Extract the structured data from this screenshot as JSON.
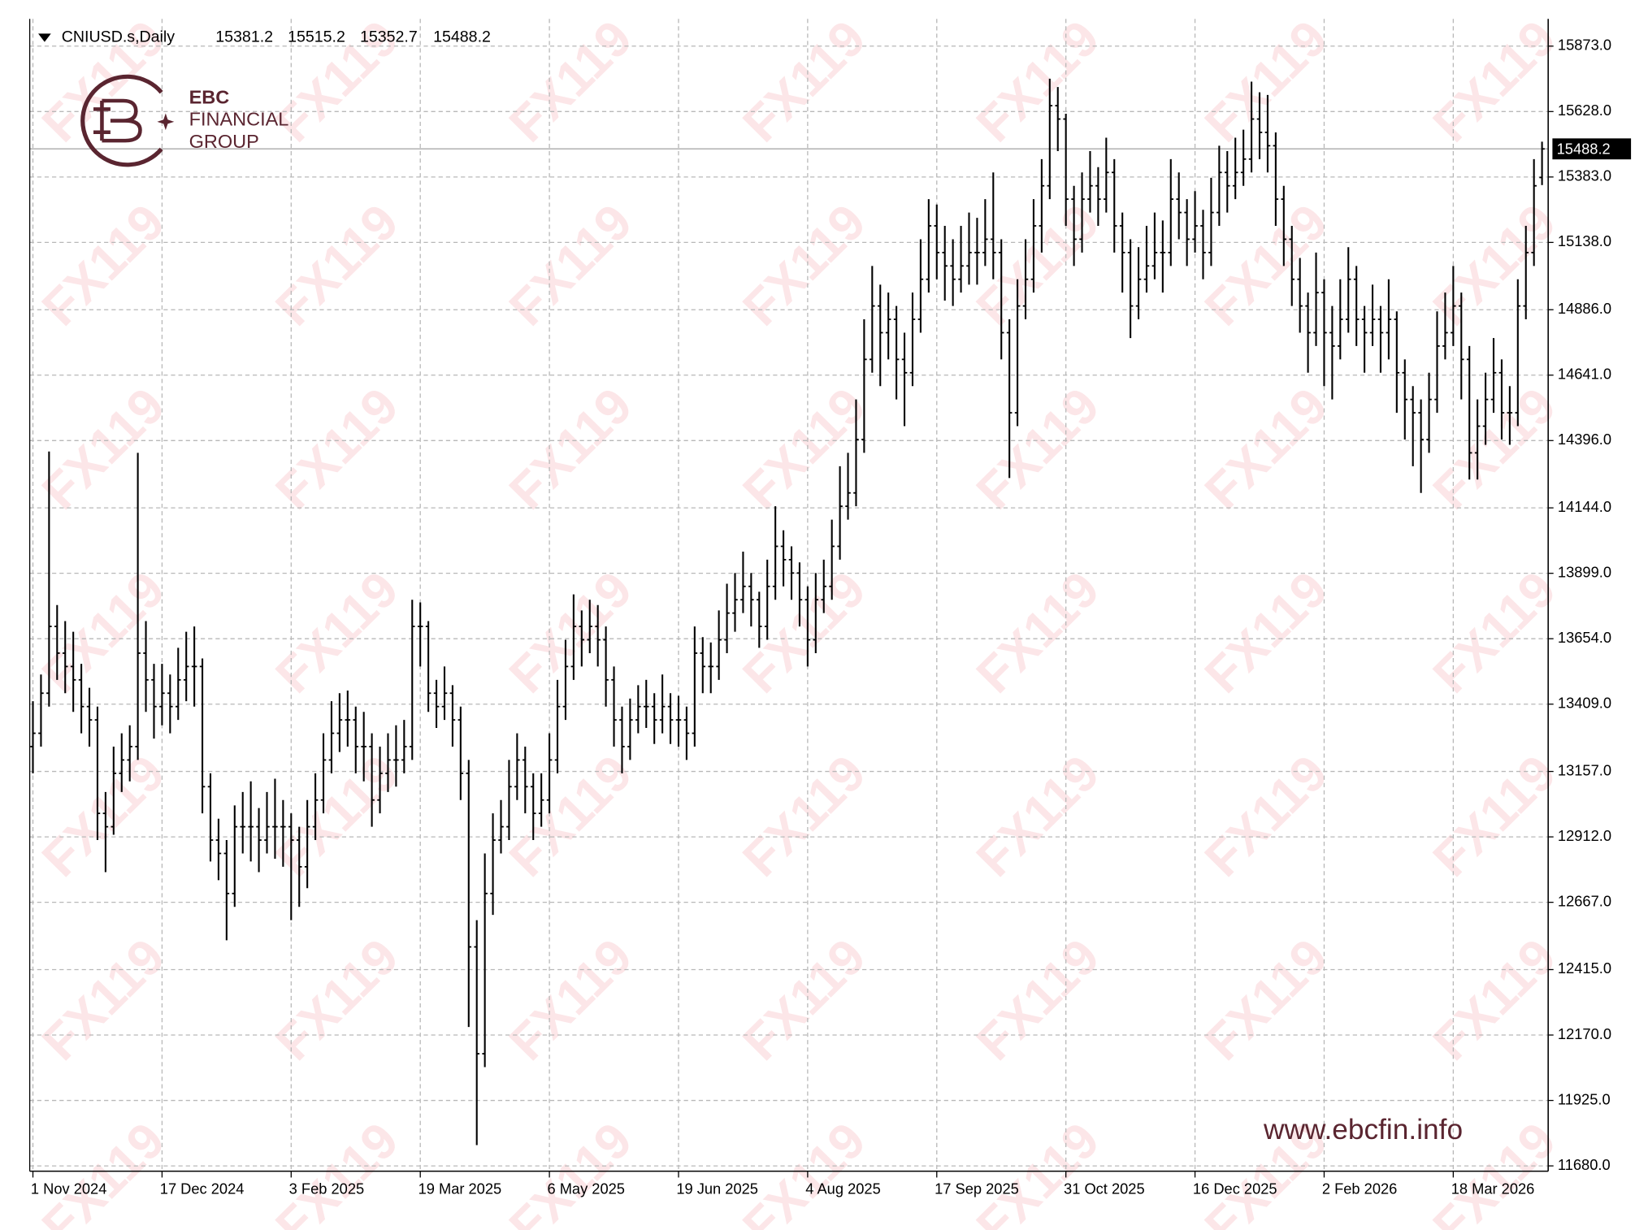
{
  "chart_data": {
    "type": "ohlc",
    "title": "CNIUSD.s,Daily",
    "color": "#000000",
    "grid": true,
    "ylim": [
      11660,
      15975
    ],
    "yticks": [
      {
        "value": 11680,
        "label": "11680.0"
      },
      {
        "value": 11925,
        "label": "11925.0"
      },
      {
        "value": 12170,
        "label": "12170.0"
      },
      {
        "value": 12415,
        "label": "12415.0"
      },
      {
        "value": 12667,
        "label": "12667.0"
      },
      {
        "value": 12912,
        "label": "12912.0"
      },
      {
        "value": 13157,
        "label": "13157.0"
      },
      {
        "value": 13409,
        "label": "13409.0"
      },
      {
        "value": 13654,
        "label": "13654.0"
      },
      {
        "value": 13899,
        "label": "13899.0"
      },
      {
        "value": 14144,
        "label": "14144.0"
      },
      {
        "value": 14396,
        "label": "14396.0"
      },
      {
        "value": 14641,
        "label": "14641.0"
      },
      {
        "value": 14886,
        "label": "14886.0"
      },
      {
        "value": 15138,
        "label": "15138.0"
      },
      {
        "value": 15383,
        "label": "15383.0"
      },
      {
        "value": 15628,
        "label": "15628.0"
      },
      {
        "value": 15873,
        "label": "15873.0"
      }
    ],
    "xticks": [
      {
        "value": 0,
        "label": "1 Nov 2024"
      },
      {
        "value": 16,
        "label": "17 Dec 2024"
      },
      {
        "value": 32,
        "label": "3 Feb 2025"
      },
      {
        "value": 48,
        "label": "19 Mar 2025"
      },
      {
        "value": 64,
        "label": "6 May 2025"
      },
      {
        "value": 80,
        "label": "19 Jun 2025"
      },
      {
        "value": 96,
        "label": "4 Aug 2025"
      },
      {
        "value": 112,
        "label": "17 Sep 2025"
      },
      {
        "value": 128,
        "label": "31 Oct 2025"
      },
      {
        "value": 144,
        "label": "16 Dec 2025"
      },
      {
        "value": 160,
        "label": "2 Feb 2026"
      },
      {
        "value": 176,
        "label": "18 Mar 2026"
      }
    ],
    "values": [
      [
        13250,
        13420,
        13150,
        13300
      ],
      [
        13300,
        13520,
        13250,
        13450
      ],
      [
        13450,
        14355,
        13400,
        13700
      ],
      [
        13700,
        13780,
        13500,
        13600
      ],
      [
        13600,
        13720,
        13450,
        13550
      ],
      [
        13550,
        13680,
        13380,
        13500
      ],
      [
        13500,
        13560,
        13300,
        13400
      ],
      [
        13400,
        13470,
        13250,
        13350
      ],
      [
        13350,
        13400,
        12900,
        13000
      ],
      [
        13000,
        13080,
        12780,
        12950
      ],
      [
        12950,
        13250,
        12920,
        13150
      ],
      [
        13150,
        13300,
        13080,
        13200
      ],
      [
        13200,
        13330,
        13120,
        13250
      ],
      [
        13250,
        14350,
        13200,
        13600
      ],
      [
        13600,
        13720,
        13380,
        13500
      ],
      [
        13500,
        13560,
        13280,
        13400
      ],
      [
        13400,
        13560,
        13330,
        13450
      ],
      [
        13450,
        13520,
        13300,
        13400
      ],
      [
        13400,
        13620,
        13350,
        13500
      ],
      [
        13500,
        13680,
        13420,
        13550
      ],
      [
        13550,
        13700,
        13400,
        13550
      ],
      [
        13550,
        13580,
        13000,
        13100
      ],
      [
        13100,
        13150,
        12820,
        12900
      ],
      [
        12900,
        12980,
        12750,
        12850
      ],
      [
        12850,
        12900,
        12525,
        12700
      ],
      [
        12700,
        13030,
        12650,
        12950
      ],
      [
        12950,
        13080,
        12850,
        12950
      ],
      [
        12950,
        13120,
        12820,
        12950
      ],
      [
        12950,
        13020,
        12780,
        12900
      ],
      [
        12900,
        13080,
        12850,
        12950
      ],
      [
        12950,
        13130,
        12830,
        12950
      ],
      [
        12950,
        13050,
        12800,
        12950
      ],
      [
        12950,
        13000,
        12600,
        12900
      ],
      [
        12900,
        12950,
        12650,
        12800
      ],
      [
        12800,
        13050,
        12720,
        12950
      ],
      [
        12950,
        13150,
        12900,
        13050
      ],
      [
        13050,
        13300,
        13000,
        13200
      ],
      [
        13200,
        13420,
        13150,
        13300
      ],
      [
        13300,
        13450,
        13230,
        13350
      ],
      [
        13350,
        13460,
        13250,
        13350
      ],
      [
        13350,
        13400,
        13150,
        13250
      ],
      [
        13250,
        13380,
        13120,
        13250
      ],
      [
        13250,
        13300,
        12950,
        13050
      ],
      [
        13050,
        13250,
        13000,
        13150
      ],
      [
        13150,
        13300,
        13080,
        13200
      ],
      [
        13200,
        13330,
        13100,
        13200
      ],
      [
        13200,
        13350,
        13150,
        13250
      ],
      [
        13250,
        13800,
        13200,
        13700
      ],
      [
        13700,
        13790,
        13550,
        13700
      ],
      [
        13700,
        13720,
        13380,
        13450
      ],
      [
        13450,
        13500,
        13320,
        13400
      ],
      [
        13400,
        13550,
        13350,
        13450
      ],
      [
        13450,
        13480,
        13250,
        13350
      ],
      [
        13350,
        13400,
        13050,
        13150
      ],
      [
        13150,
        13200,
        12200,
        12500
      ],
      [
        12500,
        12600,
        11758,
        12100
      ],
      [
        12100,
        12850,
        12050,
        12700
      ],
      [
        12700,
        13000,
        12620,
        12900
      ],
      [
        12900,
        13050,
        12850,
        12950
      ],
      [
        12950,
        13200,
        12900,
        13100
      ],
      [
        13100,
        13300,
        13050,
        13200
      ],
      [
        13200,
        13250,
        13000,
        13100
      ],
      [
        13100,
        13150,
        12900,
        13000
      ],
      [
        13000,
        13150,
        12950,
        13050
      ],
      [
        13050,
        13300,
        13000,
        13200
      ],
      [
        13200,
        13500,
        13150,
        13400
      ],
      [
        13400,
        13650,
        13350,
        13550
      ],
      [
        13550,
        13820,
        13500,
        13700
      ],
      [
        13700,
        13760,
        13550,
        13650
      ],
      [
        13650,
        13800,
        13600,
        13700
      ],
      [
        13700,
        13780,
        13550,
        13650
      ],
      [
        13650,
        13700,
        13400,
        13500
      ],
      [
        13500,
        13550,
        13250,
        13350
      ],
      [
        13350,
        13400,
        13150,
        13250
      ],
      [
        13250,
        13430,
        13200,
        13350
      ],
      [
        13350,
        13480,
        13300,
        13400
      ],
      [
        13400,
        13500,
        13320,
        13400
      ],
      [
        13400,
        13450,
        13260,
        13350
      ],
      [
        13350,
        13520,
        13300,
        13400
      ],
      [
        13400,
        13450,
        13260,
        13350
      ],
      [
        13350,
        13440,
        13250,
        13350
      ],
      [
        13350,
        13400,
        13200,
        13300
      ],
      [
        13300,
        13700,
        13250,
        13600
      ],
      [
        13600,
        13660,
        13450,
        13550
      ],
      [
        13550,
        13640,
        13450,
        13550
      ],
      [
        13550,
        13760,
        13500,
        13650
      ],
      [
        13650,
        13860,
        13600,
        13750
      ],
      [
        13750,
        13900,
        13680,
        13800
      ],
      [
        13800,
        13980,
        13750,
        13850
      ],
      [
        13850,
        13900,
        13700,
        13800
      ],
      [
        13800,
        13830,
        13620,
        13700
      ],
      [
        13700,
        13950,
        13650,
        13850
      ],
      [
        13850,
        14150,
        13800,
        14000
      ],
      [
        14000,
        14060,
        13850,
        13950
      ],
      [
        13950,
        14000,
        13800,
        13900
      ],
      [
        13900,
        13940,
        13700,
        13800
      ],
      [
        13800,
        13850,
        13550,
        13650
      ],
      [
        13650,
        13900,
        13600,
        13800
      ],
      [
        13800,
        13950,
        13750,
        13850
      ],
      [
        13850,
        14100,
        13800,
        14000
      ],
      [
        14000,
        14300,
        13950,
        14150
      ],
      [
        14150,
        14350,
        14100,
        14200
      ],
      [
        14200,
        14550,
        14150,
        14400
      ],
      [
        14400,
        14850,
        14350,
        14700
      ],
      [
        14700,
        15050,
        14650,
        14900
      ],
      [
        14900,
        14980,
        14600,
        14800
      ],
      [
        14800,
        14950,
        14700,
        14850
      ],
      [
        14850,
        14900,
        14550,
        14700
      ],
      [
        14700,
        14800,
        14450,
        14650
      ],
      [
        14650,
        14950,
        14600,
        14850
      ],
      [
        14850,
        15150,
        14800,
        15000
      ],
      [
        15000,
        15300,
        14950,
        15200
      ],
      [
        15200,
        15280,
        15000,
        15100
      ],
      [
        15100,
        15200,
        14920,
        15050
      ],
      [
        15050,
        15150,
        14900,
        15000
      ],
      [
        15000,
        15200,
        14950,
        15050
      ],
      [
        15050,
        15250,
        14980,
        15100
      ],
      [
        15100,
        15230,
        14980,
        15100
      ],
      [
        15100,
        15300,
        15050,
        15150
      ],
      [
        15150,
        15400,
        15000,
        15100
      ],
      [
        15100,
        15150,
        14700,
        14800
      ],
      [
        14800,
        14850,
        14256,
        14500
      ],
      [
        14500,
        15000,
        14450,
        14900
      ],
      [
        14900,
        15150,
        14850,
        15000
      ],
      [
        15000,
        15300,
        14950,
        15200
      ],
      [
        15200,
        15450,
        15100,
        15350
      ],
      [
        15350,
        15751,
        15300,
        15650
      ],
      [
        15650,
        15720,
        15480,
        15600
      ],
      [
        15600,
        15620,
        15200,
        15300
      ],
      [
        15300,
        15350,
        15050,
        15150
      ],
      [
        15150,
        15400,
        15100,
        15300
      ],
      [
        15300,
        15480,
        15250,
        15350
      ],
      [
        15350,
        15420,
        15200,
        15300
      ],
      [
        15300,
        15530,
        15250,
        15400
      ],
      [
        15400,
        15450,
        15100,
        15200
      ],
      [
        15200,
        15250,
        14950,
        15100
      ],
      [
        15100,
        15150,
        14780,
        14900
      ],
      [
        14900,
        15120,
        14850,
        15000
      ],
      [
        15000,
        15200,
        14950,
        15050
      ],
      [
        15050,
        15250,
        15000,
        15100
      ],
      [
        15100,
        15220,
        14950,
        15100
      ],
      [
        15100,
        15450,
        15050,
        15300
      ],
      [
        15300,
        15400,
        15150,
        15250
      ],
      [
        15250,
        15300,
        15050,
        15150
      ],
      [
        15150,
        15330,
        15100,
        15200
      ],
      [
        15200,
        15260,
        15000,
        15100
      ],
      [
        15100,
        15380,
        15050,
        15250
      ],
      [
        15250,
        15500,
        15200,
        15400
      ],
      [
        15400,
        15480,
        15250,
        15350
      ],
      [
        15350,
        15530,
        15300,
        15400
      ],
      [
        15400,
        15560,
        15350,
        15450
      ],
      [
        15450,
        15740,
        15400,
        15600
      ],
      [
        15600,
        15700,
        15450,
        15550
      ],
      [
        15550,
        15690,
        15400,
        15500
      ],
      [
        15500,
        15550,
        15200,
        15300
      ],
      [
        15300,
        15350,
        15050,
        15150
      ],
      [
        15150,
        15200,
        14900,
        15000
      ],
      [
        15000,
        15080,
        14800,
        14900
      ],
      [
        14900,
        14950,
        14650,
        14800
      ],
      [
        14800,
        15100,
        14750,
        14950
      ],
      [
        14950,
        15000,
        14600,
        14800
      ],
      [
        14800,
        14900,
        14550,
        14750
      ],
      [
        14750,
        15000,
        14700,
        14850
      ],
      [
        14850,
        15120,
        14800,
        15000
      ],
      [
        15000,
        15050,
        14750,
        14850
      ],
      [
        14850,
        14900,
        14650,
        14800
      ],
      [
        14800,
        14980,
        14750,
        14850
      ],
      [
        14850,
        14900,
        14650,
        14800
      ],
      [
        14800,
        15000,
        14700,
        14850
      ],
      [
        14850,
        14880,
        14500,
        14650
      ],
      [
        14650,
        14700,
        14400,
        14550
      ],
      [
        14550,
        14600,
        14300,
        14500
      ],
      [
        14500,
        14550,
        14200,
        14400
      ],
      [
        14400,
        14650,
        14350,
        14550
      ],
      [
        14550,
        14880,
        14500,
        14750
      ],
      [
        14750,
        14950,
        14700,
        14800
      ],
      [
        14800,
        15050,
        14750,
        14900
      ],
      [
        14900,
        14950,
        14550,
        14700
      ],
      [
        14700,
        14750,
        14250,
        14350
      ],
      [
        14350,
        14550,
        14250,
        14450
      ],
      [
        14450,
        14650,
        14380,
        14550
      ],
      [
        14550,
        14780,
        14500,
        14650
      ],
      [
        14650,
        14700,
        14400,
        14500
      ],
      [
        14500,
        14600,
        14380,
        14500
      ],
      [
        14500,
        15000,
        14450,
        14900
      ],
      [
        14900,
        15200,
        14850,
        15100
      ],
      [
        15100,
        15450,
        15050,
        15350
      ],
      [
        15381.2,
        15515.2,
        15352.7,
        15488.2
      ]
    ]
  },
  "watermark": "FX119",
  "logo": {
    "lines": [
      "EBC",
      "FINANCIAL",
      "GROUP"
    ]
  },
  "website": "www.ebcfin.info"
}
